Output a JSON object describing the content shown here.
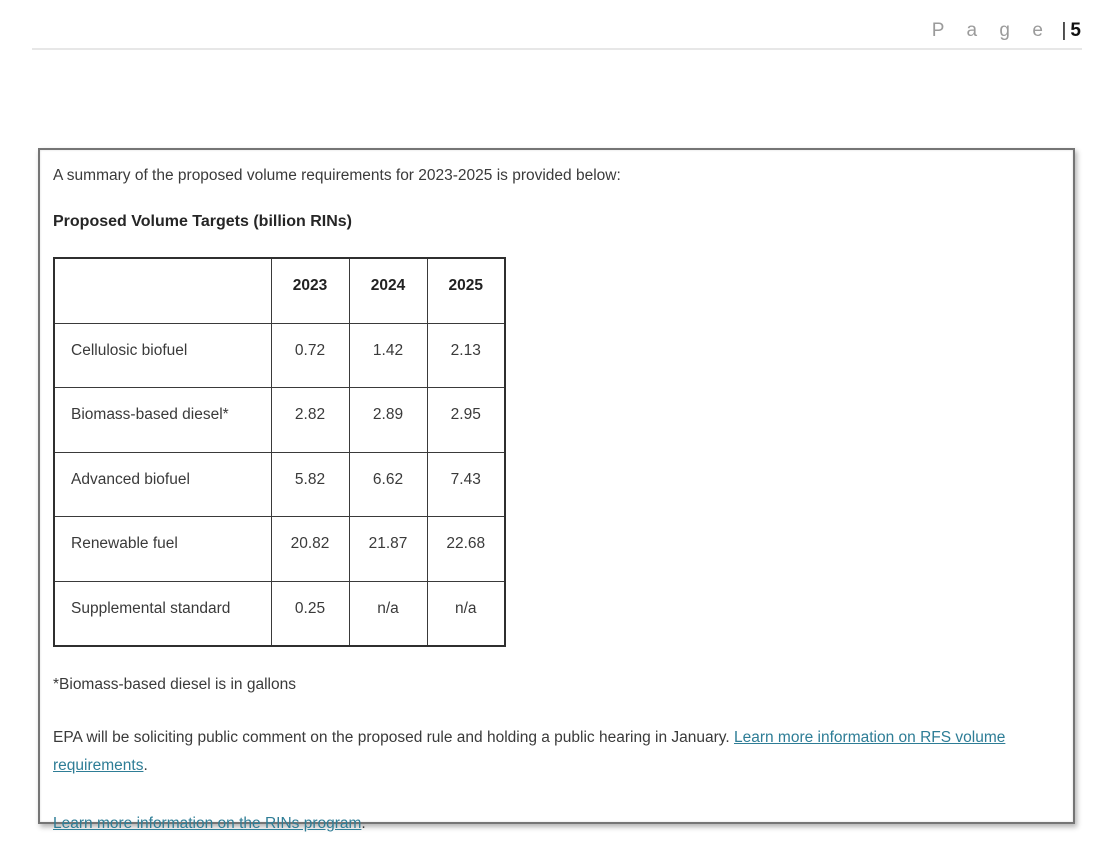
{
  "header": {
    "page_word": "P a g e",
    "separator": "|",
    "page_number": "5"
  },
  "content": {
    "summary": "A summary of the proposed volume requirements for 2023-2025 is provided below:",
    "table_title": "Proposed Volume Targets (billion RINs)",
    "table": {
      "columns": [
        "",
        "2023",
        "2024",
        "2025"
      ],
      "rows": [
        {
          "label": "Cellulosic biofuel",
          "values": [
            "0.72",
            "1.42",
            "2.13"
          ]
        },
        {
          "label": "Biomass-based diesel*",
          "values": [
            "2.82",
            "2.89",
            "2.95"
          ]
        },
        {
          "label": "Advanced biofuel",
          "values": [
            "5.82",
            "6.62",
            "7.43"
          ]
        },
        {
          "label": "Renewable fuel",
          "values": [
            "20.82",
            "21.87",
            "22.68"
          ]
        },
        {
          "label": "Supplemental standard",
          "values": [
            "0.25",
            "n/a",
            "n/a"
          ]
        }
      ]
    },
    "footnote": "*Biomass-based diesel is in gallons",
    "epa_paragraph": {
      "text": "EPA will be soliciting public comment on the proposed rule and holding a public hearing in January. ",
      "link_label": "Learn more information on RFS volume requirements",
      "after_link": "."
    },
    "rins_paragraph": {
      "link_label": "Learn more information on the RINs program",
      "after_link": "."
    }
  },
  "colors": {
    "link": "#2e7d96",
    "body_text": "#3a3a3a",
    "page_word_gray": "#9b9b9b",
    "box_border": "#757575",
    "table_border": "#2f2f2f",
    "header_rule": "#e7e7e7"
  }
}
